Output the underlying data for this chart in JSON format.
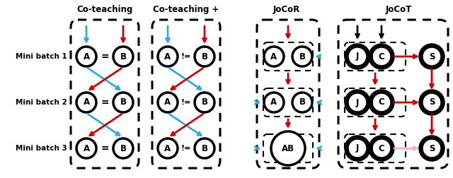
{
  "col_titles": [
    "Co-teaching",
    "Co-teaching +",
    "JoCoR",
    "JoCoT"
  ],
  "row_labels": [
    "Mini batch 1",
    "Mini batch 2",
    "Mini batch 3"
  ],
  "bg_color": "#ffffff",
  "arrow_red": "#cc0000",
  "arrow_blue": "#33aadd",
  "arrow_black": "#000000",
  "arrow_pink": "#ffaacc"
}
